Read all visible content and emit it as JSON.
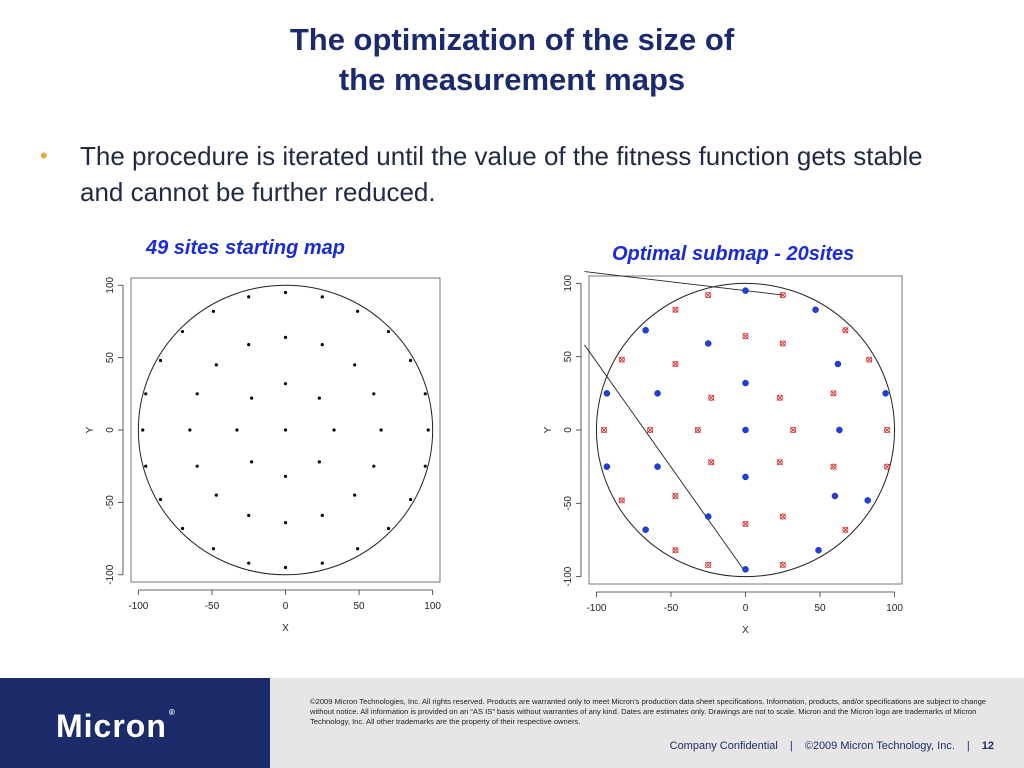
{
  "slide": {
    "title_line1": "The optimization of the size of",
    "title_line2": "the measurement maps",
    "bullet": "The procedure is iterated until the value of the fitness function gets stable and cannot be further reduced."
  },
  "charts": {
    "left_caption": "49 sites starting map",
    "right_caption": "Optimal submap - 20sites"
  },
  "chart_data": [
    {
      "type": "scatter",
      "title": "49 sites starting map",
      "xlabel": "X",
      "ylabel": "Y",
      "xlim": [
        -105,
        105
      ],
      "ylim": [
        -105,
        105
      ],
      "xticks": [
        -100,
        -50,
        0,
        50,
        100
      ],
      "yticks": [
        -100,
        -50,
        0,
        50,
        100
      ],
      "grid": false,
      "series": [
        {
          "marker": "dot",
          "color": "#000000",
          "points": [
            [
              0,
              95
            ],
            [
              -25,
              92
            ],
            [
              25,
              92
            ],
            [
              -49,
              82
            ],
            [
              49,
              82
            ],
            [
              -70,
              68
            ],
            [
              70,
              68
            ],
            [
              -25,
              59
            ],
            [
              25,
              59
            ],
            [
              0,
              64
            ],
            [
              -85,
              48
            ],
            [
              -47,
              45
            ],
            [
              47,
              45
            ],
            [
              85,
              48
            ],
            [
              0,
              32
            ],
            [
              -95,
              25
            ],
            [
              -60,
              25
            ],
            [
              -23,
              22
            ],
            [
              23,
              22
            ],
            [
              60,
              25
            ],
            [
              95,
              25
            ],
            [
              -97,
              0
            ],
            [
              -65,
              0
            ],
            [
              -33,
              0
            ],
            [
              0,
              0
            ],
            [
              33,
              0
            ],
            [
              65,
              0
            ],
            [
              97,
              0
            ],
            [
              -95,
              -25
            ],
            [
              -60,
              -25
            ],
            [
              -23,
              -22
            ],
            [
              23,
              -22
            ],
            [
              60,
              -25
            ],
            [
              95,
              -25
            ],
            [
              0,
              -32
            ],
            [
              -85,
              -48
            ],
            [
              -47,
              -45
            ],
            [
              47,
              -45
            ],
            [
              85,
              -48
            ],
            [
              -70,
              -68
            ],
            [
              70,
              -68
            ],
            [
              -25,
              -59
            ],
            [
              25,
              -59
            ],
            [
              0,
              -64
            ],
            [
              -49,
              -82
            ],
            [
              49,
              -82
            ],
            [
              -25,
              -92
            ],
            [
              25,
              -92
            ],
            [
              0,
              -95
            ]
          ]
        }
      ]
    },
    {
      "type": "scatter",
      "title": "Optimal submap - 20sites",
      "xlabel": "X",
      "ylabel": "Y",
      "xlim": [
        -105,
        105
      ],
      "ylim": [
        -105,
        105
      ],
      "xticks": [
        -100,
        -50,
        0,
        50,
        100
      ],
      "yticks": [
        -100,
        -50,
        0,
        50,
        100
      ],
      "grid": false,
      "series": [
        {
          "marker": "filled-circle",
          "color": "#1f3fe0",
          "points": [
            [
              0,
              95
            ],
            [
              47,
              82
            ],
            [
              -67,
              68
            ],
            [
              -25,
              59
            ],
            [
              62,
              45
            ],
            [
              0,
              32
            ],
            [
              -93,
              25
            ],
            [
              -59,
              25
            ],
            [
              94,
              25
            ],
            [
              0,
              0
            ],
            [
              63,
              0
            ],
            [
              -93,
              -25
            ],
            [
              -59,
              -25
            ],
            [
              0,
              -32
            ],
            [
              60,
              -45
            ],
            [
              -25,
              -59
            ],
            [
              82,
              -48
            ],
            [
              -67,
              -68
            ],
            [
              49,
              -82
            ],
            [
              0,
              -95
            ]
          ]
        },
        {
          "marker": "x-circle",
          "color": "#d42020",
          "points": [
            [
              -25,
              92
            ],
            [
              25,
              92
            ],
            [
              -47,
              82
            ],
            [
              0,
              64
            ],
            [
              25,
              59
            ],
            [
              67,
              68
            ],
            [
              -83,
              48
            ],
            [
              -47,
              45
            ],
            [
              83,
              48
            ],
            [
              -23,
              22
            ],
            [
              23,
              22
            ],
            [
              59,
              25
            ],
            [
              -95,
              0
            ],
            [
              -64,
              0
            ],
            [
              -32,
              0
            ],
            [
              32,
              0
            ],
            [
              95,
              0
            ],
            [
              -23,
              -22
            ],
            [
              23,
              -22
            ],
            [
              59,
              -25
            ],
            [
              95,
              -25
            ],
            [
              -83,
              -48
            ],
            [
              -47,
              -45
            ],
            [
              0,
              -64
            ],
            [
              25,
              -59
            ],
            [
              67,
              -68
            ],
            [
              -47,
              -82
            ],
            [
              -25,
              -92
            ],
            [
              25,
              -92
            ]
          ]
        }
      ],
      "lines": [
        {
          "points": [
            [
              -108,
              108
            ],
            [
              25,
              92
            ]
          ]
        },
        {
          "points": [
            [
              -108,
              58
            ],
            [
              0,
              -97
            ]
          ]
        }
      ]
    }
  ],
  "footer": {
    "brand": "Micron",
    "brand_reg": "®",
    "legal": "©2009 Micron Technologies, Inc. All rights reserved. Products are warranted only to meet Micron’s production data sheet specifications. Information, products, and/or specifications are subject to change without notice. All information is provided on an “AS IS” basis without warranties of any kind. Dates are estimates only. Drawings are not to scale. Micron and the Micron logo are trademarks of Micron Technology, Inc. All other trademarks are the property of their respective owners.",
    "confidential": "Company Confidential",
    "copyright": "©2009 Micron Technology, Inc.",
    "page": "12"
  },
  "colors": {
    "title": "#1a2a6c",
    "caption": "#1a2ad8",
    "bullet": "#e8a33c",
    "footer_dark": "#1c2c6a",
    "footer_light": "#e6e6e6"
  }
}
